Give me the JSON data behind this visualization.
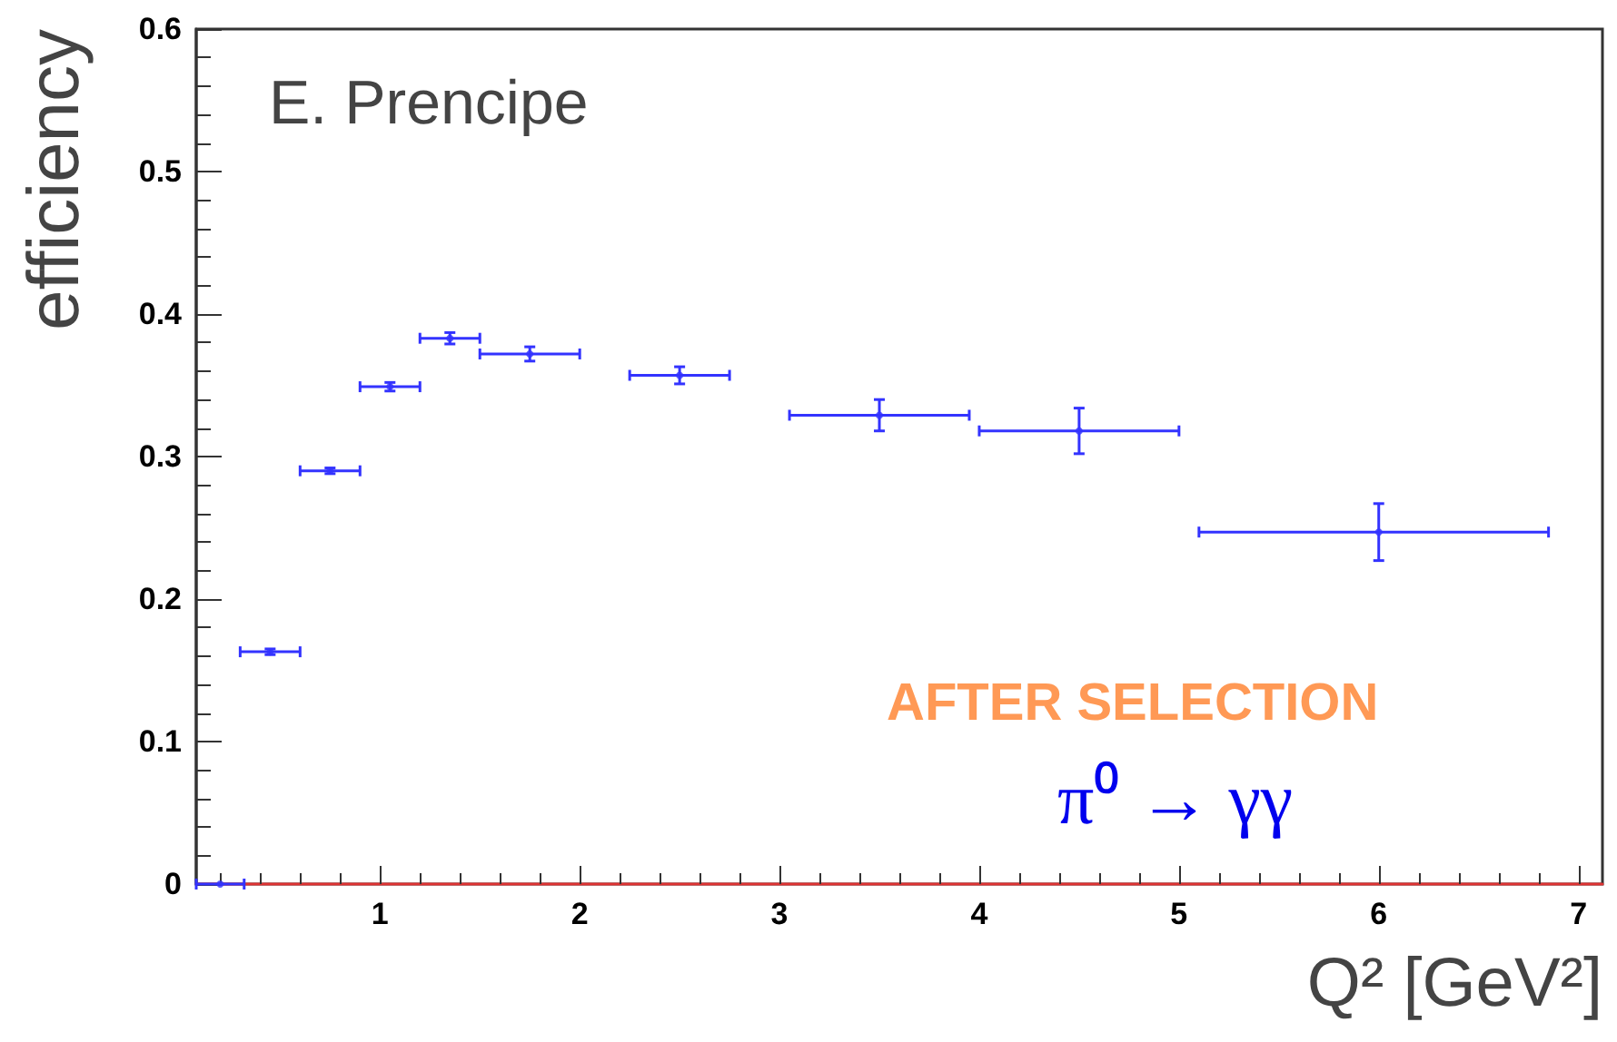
{
  "chart_data": {
    "type": "scatter",
    "xlabel": "Q² [GeV²]",
    "ylabel": "efficiency",
    "annotations": [
      "E. Prencipe",
      "AFTER SELECTION",
      "π⁰ → γγ"
    ],
    "series": [
      {
        "color": "#3333ff",
        "x": [
          0.2,
          0.45,
          0.75,
          1.05,
          1.35,
          1.75,
          2.5,
          3.5,
          4.5,
          6
        ],
        "values": [
          0,
          0.163,
          0.29,
          0.349,
          0.383,
          0.372,
          0.357,
          0.329,
          0.318,
          0.247
        ],
        "errors": [
          null,
          0.002,
          0.002,
          0.003,
          0.004,
          0.005,
          0.006,
          0.011,
          0.016,
          0.02
        ],
        "xerrors": [
          0.12,
          0.15,
          0.15,
          0.15,
          0.15,
          0.25,
          0.25,
          0.45,
          0.5,
          [
            5.1,
            6.85
          ]
        ]
      }
    ],
    "xlim": [
      0.08,
      7.12
    ],
    "xticks": [
      1,
      2,
      3,
      4,
      5,
      6,
      7
    ],
    "ylim": [
      0,
      0.6
    ],
    "yticks": [
      0,
      0.1,
      0.2,
      0.3,
      0.4,
      0.5,
      0.6
    ],
    "grid": false,
    "marker": "circle"
  }
}
